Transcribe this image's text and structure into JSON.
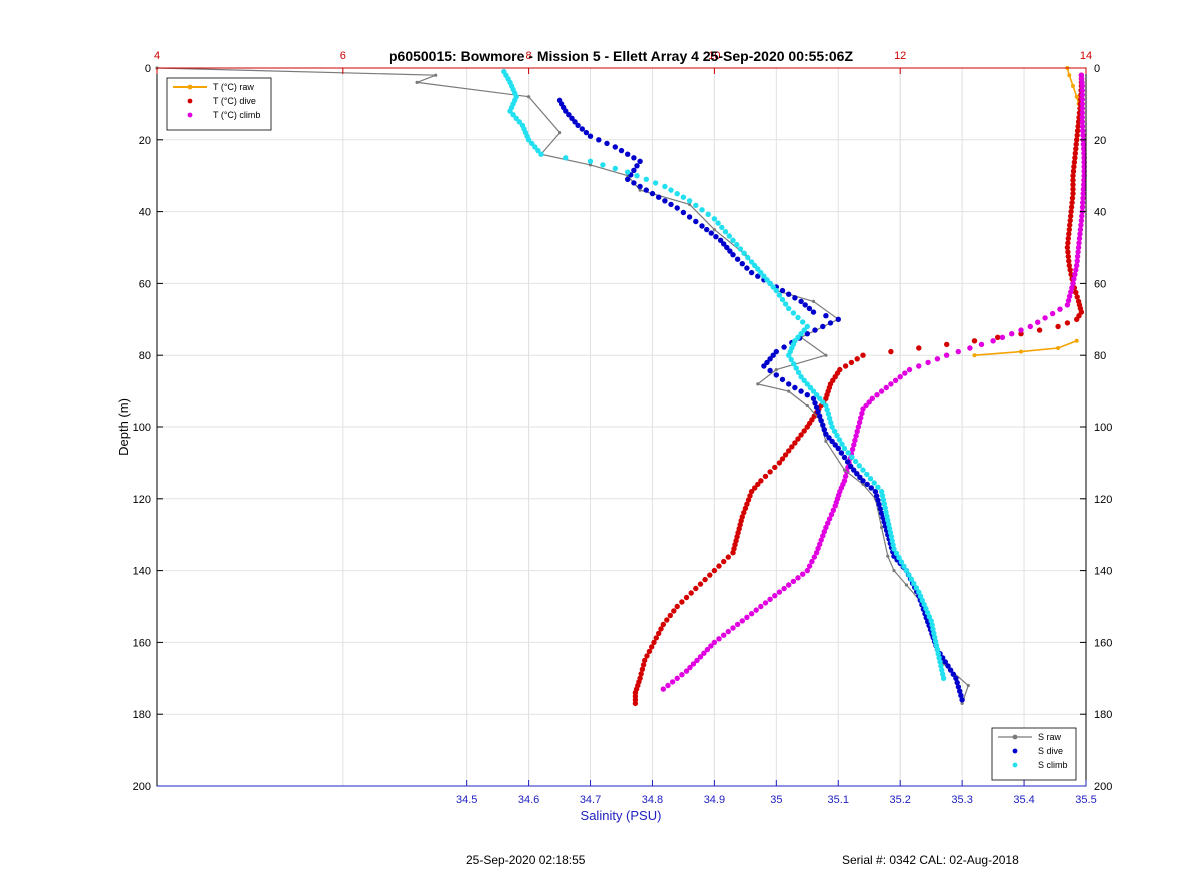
{
  "chart_data": {
    "type": "line",
    "title": "p6050015: Bowmore - Mission 5 - Ellett Array 4 25-Sep-2020 00:55:06Z",
    "ylabel": "Depth (m)",
    "xlabel_bottom": "Salinity (PSU)",
    "xlabel_top": "",
    "ylim": [
      0,
      200
    ],
    "y_reversed": true,
    "salinity_xlim": [
      34.0,
      35.5
    ],
    "temperature_xlim": [
      4,
      14
    ],
    "yticks": [
      0,
      20,
      40,
      60,
      80,
      100,
      120,
      140,
      160,
      180,
      200
    ],
    "yticks_right": [
      0,
      20,
      40,
      60,
      80,
      100,
      120,
      140,
      160,
      180,
      200
    ],
    "salinity_ticks": [
      "34.5",
      "34.6",
      "34.7",
      "34.8",
      "34.9",
      "35",
      "35.1",
      "35.2",
      "35.3",
      "35.4",
      "35.5"
    ],
    "temperature_ticks": [
      "4",
      "6",
      "8",
      "10",
      "12",
      "14"
    ],
    "grid": true,
    "legend_temperature": {
      "placement": "top-left",
      "entries": [
        "T (°C) raw",
        "T (°C) dive",
        "T (°C) climb"
      ]
    },
    "legend_salinity": {
      "placement": "bottom-right",
      "entries": [
        "S raw",
        "S dive",
        "S climb"
      ]
    },
    "colors": {
      "t_raw": "#f5a300",
      "t_dive": "#d40000",
      "t_climb": "#e000e0",
      "s_raw": "#7a7a7a",
      "s_dive": "#0000cc",
      "s_climb": "#22e0f0",
      "salinity_axis": "#2020c0",
      "temperature_axis": "#cc0000"
    },
    "series": [
      {
        "name": "T (°C) raw",
        "axis": "temperature",
        "x": [
          13.8,
          13.82,
          13.86,
          13.9,
          13.92
        ],
        "y": [
          0,
          2,
          5,
          8,
          10
        ]
      },
      {
        "name": "T (°C) raw",
        "axis": "temperature",
        "x": [
          13.9,
          13.7,
          13.3,
          12.8
        ],
        "y": [
          76,
          78,
          79,
          80
        ]
      },
      {
        "name": "T (°C) dive",
        "axis": "temperature",
        "x": [
          13.95,
          13.95,
          13.94,
          13.92,
          13.9,
          13.88,
          13.86,
          13.86,
          13.84,
          13.82,
          13.8,
          13.82,
          13.86,
          13.92,
          13.95,
          13.9,
          13.7,
          13.3,
          12.8,
          12.2,
          11.6,
          11.35,
          11.25,
          11.2,
          11.1,
          11.0,
          10.7,
          10.5,
          10.4,
          10.3,
          10.2,
          10.0,
          9.8,
          9.6,
          9.45,
          9.35,
          9.25,
          9.2,
          9.15,
          9.15
        ],
        "y": [
          2,
          5,
          10,
          15,
          20,
          25,
          30,
          35,
          40,
          45,
          50,
          55,
          60,
          65,
          68,
          70,
          72,
          74,
          76,
          78,
          80,
          84,
          88,
          92,
          96,
          100,
          110,
          115,
          118,
          125,
          135,
          140,
          145,
          150,
          155,
          160,
          165,
          170,
          174,
          177
        ]
      },
      {
        "name": "T (°C) climb",
        "axis": "temperature",
        "x": [
          13.95,
          13.96,
          13.96,
          13.96,
          13.97,
          13.98,
          13.98,
          13.97,
          13.96,
          13.94,
          13.92,
          13.9,
          13.86,
          13.8,
          13.4,
          13.0,
          12.5,
          12.1,
          11.9,
          11.7,
          11.6,
          11.55,
          11.5,
          11.45,
          11.4,
          11.35,
          11.3,
          11.2,
          11.1,
          11.0,
          10.8,
          10.6,
          10.4,
          10.2,
          10.0,
          9.85,
          9.7,
          9.55,
          9.45
        ],
        "y": [
          2,
          5,
          10,
          15,
          20,
          25,
          30,
          35,
          40,
          45,
          50,
          55,
          60,
          66,
          72,
          76,
          80,
          84,
          88,
          92,
          95,
          100,
          105,
          110,
          115,
          118,
          122,
          128,
          135,
          140,
          144,
          148,
          152,
          156,
          160,
          164,
          168,
          171,
          173
        ]
      },
      {
        "name": "S raw",
        "axis": "salinity",
        "x": [
          34.0,
          34.45,
          34.42,
          34.6,
          34.65,
          34.62,
          34.7,
          34.76,
          34.78,
          34.86,
          34.9,
          34.95,
          34.98,
          35.0,
          35.06,
          35.1,
          35.04,
          35.08,
          35.0,
          34.97,
          35.02,
          35.05,
          35.07,
          35.08,
          35.11,
          35.14,
          35.16,
          35.17,
          35.18,
          35.19,
          35.21,
          35.24,
          35.25,
          35.27,
          35.31,
          35.3
        ],
        "y": [
          0,
          2,
          4,
          8,
          18,
          24,
          27,
          30,
          34,
          38,
          45,
          52,
          58,
          62,
          65,
          70,
          75,
          80,
          84,
          88,
          90,
          94,
          98,
          104,
          112,
          116,
          120,
          128,
          136,
          140,
          144,
          150,
          158,
          166,
          172,
          177
        ]
      },
      {
        "name": "S dive",
        "axis": "salinity",
        "x": [
          34.65,
          34.66,
          34.68,
          34.7,
          34.74,
          34.78,
          34.76,
          34.8,
          34.84,
          34.88,
          34.91,
          34.93,
          34.96,
          35.0,
          35.04,
          35.06,
          35.1,
          35.05,
          35.0,
          34.98,
          35.02,
          35.06,
          35.07,
          35.08,
          35.1,
          35.12,
          35.14,
          35.16,
          35.17,
          35.18,
          35.19,
          35.21,
          35.23,
          35.24,
          35.26,
          35.29,
          35.3
        ],
        "y": [
          9,
          12,
          16,
          19,
          22,
          26,
          31,
          35,
          39,
          44,
          48,
          52,
          57,
          61,
          65,
          68,
          70,
          74,
          79,
          83,
          88,
          92,
          97,
          102,
          106,
          111,
          115,
          118,
          124,
          130,
          136,
          140,
          147,
          152,
          162,
          170,
          176
        ]
      },
      {
        "name": "S climb",
        "axis": "salinity",
        "x": [
          34.56,
          34.57,
          34.58,
          34.57,
          34.59,
          34.6,
          34.62,
          34.7,
          34.76,
          34.82,
          34.86,
          34.9,
          34.93,
          34.96,
          34.98,
          35.0,
          35.02,
          35.05,
          35.03,
          35.02,
          35.04,
          35.06,
          35.08,
          35.09,
          35.11,
          35.14,
          35.17,
          35.18,
          35.19,
          35.21,
          35.23,
          35.25,
          35.26,
          35.27
        ],
        "y": [
          1,
          4,
          8,
          12,
          16,
          20,
          24,
          26,
          29,
          33,
          37,
          42,
          48,
          54,
          58,
          62,
          67,
          72,
          76,
          80,
          86,
          90,
          94,
          100,
          106,
          112,
          118,
          126,
          134,
          140,
          146,
          154,
          162,
          170
        ]
      }
    ]
  },
  "footer": {
    "timestamp": "25-Sep-2020 02:18:55",
    "serial": "Serial #: 0342  CAL: 02-Aug-2018"
  }
}
